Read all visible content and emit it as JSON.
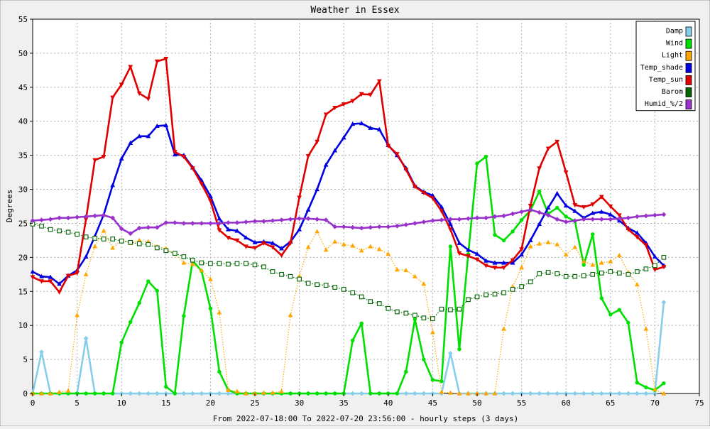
{
  "chart_data": {
    "type": "line",
    "title": "Weather in Essex",
    "xlabel": "From 2022-07-18:00 To 2022-07-20 23:56:00 - hourly steps (3 days)",
    "ylabel": "Degrees",
    "xlim": [
      0,
      75
    ],
    "ylim": [
      0,
      55
    ],
    "xticks": [
      0,
      5,
      10,
      15,
      20,
      25,
      30,
      35,
      40,
      45,
      50,
      55,
      60,
      65,
      70,
      75
    ],
    "yticks": [
      0,
      5,
      10,
      15,
      20,
      25,
      30,
      35,
      40,
      45,
      50,
      55
    ],
    "grid": true,
    "legend_position": "top-right",
    "series": [
      {
        "name": "Damp",
        "color": "#87ceeb",
        "style": "solid",
        "marker": "diamond",
        "values": [
          0,
          6.1,
          0,
          0,
          0,
          0,
          8.1,
          0,
          0,
          0,
          0,
          0,
          0,
          0,
          0,
          0,
          0,
          0,
          0,
          0,
          0,
          0,
          0,
          0,
          0,
          0,
          0,
          0,
          0,
          0,
          0,
          0,
          0,
          0,
          0,
          0,
          0,
          0,
          0,
          0,
          0,
          0,
          0,
          0,
          0,
          0,
          0,
          5.9,
          0,
          0,
          0,
          0,
          0,
          0,
          0,
          0,
          0,
          0,
          0,
          0,
          0,
          0,
          0,
          0,
          0,
          0,
          0,
          0,
          0,
          0,
          0,
          13.4
        ]
      },
      {
        "name": "Wind",
        "color": "#00e000",
        "style": "solid",
        "marker": "circle",
        "values": [
          0,
          0,
          0,
          0,
          0,
          0,
          0,
          0,
          0,
          0,
          7.5,
          10.5,
          13.3,
          16.5,
          15.1,
          1,
          0,
          11.4,
          19.5,
          18,
          12.5,
          3.2,
          0.5,
          0,
          0,
          0,
          0,
          0,
          0,
          0,
          0,
          0,
          0,
          0,
          0,
          0,
          7.8,
          10.3,
          0,
          0,
          0,
          0,
          3.2,
          10.9,
          5,
          2,
          1.8,
          21.6,
          6.5,
          20.5,
          33.8,
          34.8,
          23.3,
          22.5,
          23.8,
          25.5,
          26.9,
          29.7,
          26.4,
          27.3,
          26,
          25.3,
          18.9,
          23.4,
          14,
          11.6,
          12.3,
          10.4,
          1.6,
          0.9,
          0.5,
          1.5
        ]
      },
      {
        "name": "Light",
        "color": "#ffa500",
        "style": "dotted",
        "marker": "triangle",
        "values": [
          0,
          0,
          0,
          0.2,
          0.4,
          11.5,
          17.5,
          21.6,
          23.9,
          21.4,
          22.5,
          22.1,
          22.5,
          22.3,
          21.6,
          21.3,
          20.5,
          19.2,
          19,
          18.1,
          16.8,
          11.9,
          0.5,
          0.3,
          0,
          0,
          0.1,
          0.1,
          0.3,
          11.5,
          17.2,
          21.5,
          23.8,
          21.1,
          22.3,
          21.9,
          21.7,
          21,
          21.6,
          21.2,
          20.5,
          18.2,
          18.1,
          17.2,
          16.1,
          9,
          0.2,
          0.1,
          0,
          0,
          0,
          0,
          0,
          9.5,
          15.7,
          18.5,
          21.6,
          22,
          22.2,
          21.9,
          20.4,
          21.5,
          19.4,
          18.9,
          19.2,
          19.4,
          20.3,
          17.8,
          16,
          9.5,
          0.6,
          0
        ]
      },
      {
        "name": "Temp_shade",
        "color": "#0000e0",
        "style": "solid",
        "marker": "triangle",
        "values": [
          17.9,
          17.2,
          17.1,
          16.1,
          17.3,
          18.1,
          20.1,
          23.1,
          26.3,
          30.6,
          34.5,
          36.8,
          37.8,
          37.8,
          39.3,
          39.4,
          35.1,
          35,
          33.2,
          31.3,
          29,
          25.7,
          24.1,
          23.9,
          22.9,
          22.2,
          22.3,
          22.1,
          21.3,
          22.3,
          24.1,
          27,
          30,
          33.6,
          35.7,
          37.6,
          39.6,
          39.7,
          39,
          38.8,
          36.5,
          35,
          33.1,
          30.5,
          29.6,
          29.1,
          27.4,
          24.9,
          22.1,
          21.1,
          20.5,
          19.5,
          19.2,
          19.2,
          19.2,
          20.4,
          22.5,
          24.9,
          27.3,
          29.4,
          27.6,
          26.8,
          25.8,
          26.5,
          26.7,
          26.3,
          25.4,
          24.3,
          23.6,
          22.1,
          20.1,
          18.8
        ]
      },
      {
        "name": "Temp_sun",
        "color": "#e00000",
        "style": "solid",
        "marker": "triangle-down",
        "values": [
          17.1,
          16.5,
          16.5,
          14.9,
          17.3,
          17.7,
          25.6,
          34.3,
          34.8,
          43.5,
          45.4,
          48,
          44.1,
          43.3,
          48.8,
          49.2,
          35.5,
          34.8,
          33.1,
          30.8,
          28.3,
          24,
          22.9,
          22.5,
          21.6,
          21.4,
          22.1,
          21.5,
          20.3,
          22.1,
          28.8,
          34.9,
          37,
          41,
          42,
          42.5,
          43,
          44,
          43.9,
          45.9,
          36.4,
          35.2,
          32.9,
          30.4,
          29.5,
          28.7,
          26.8,
          24.1,
          20.6,
          20.2,
          19.7,
          18.8,
          18.5,
          18.5,
          19.6,
          21.2,
          27.6,
          33.1,
          36,
          37,
          32.5,
          27.7,
          27.4,
          27.8,
          28.9,
          27.5,
          26.2,
          24.1,
          23,
          21.8,
          18.2,
          18.6
        ]
      },
      {
        "name": "Barom",
        "color": "#006400",
        "style": "dotted",
        "marker": "square",
        "values": [
          24.9,
          24.6,
          24.1,
          23.9,
          23.7,
          23.4,
          23,
          22.8,
          22.7,
          22.7,
          22.4,
          22.2,
          22,
          21.9,
          21.4,
          21,
          20.6,
          20.1,
          19.6,
          19.2,
          19.1,
          19.1,
          19,
          19.1,
          19.1,
          18.9,
          18.6,
          17.9,
          17.5,
          17.2,
          16.8,
          16.2,
          16,
          15.9,
          15.6,
          15.3,
          14.8,
          14.2,
          13.5,
          13.2,
          12.5,
          12,
          11.8,
          11.5,
          11.1,
          11,
          12.4,
          12.3,
          12.4,
          13.8,
          14.2,
          14.5,
          14.6,
          14.8,
          15.3,
          15.7,
          16.4,
          17.6,
          17.8,
          17.6,
          17.2,
          17.2,
          17.3,
          17.5,
          17.7,
          17.9,
          17.7,
          17.5,
          17.9,
          18.3,
          18.8,
          20
        ]
      },
      {
        "name": "Humid_%/2",
        "color": "#9932cc",
        "style": "solid",
        "marker": "diamond",
        "values": [
          25.4,
          25.5,
          25.6,
          25.8,
          25.8,
          25.9,
          26,
          26.1,
          26.2,
          25.8,
          24.2,
          23.5,
          24.3,
          24.4,
          24.4,
          25.1,
          25.1,
          25,
          25,
          25,
          25,
          25,
          25.1,
          25.1,
          25.2,
          25.3,
          25.3,
          25.4,
          25.5,
          25.6,
          25.7,
          25.7,
          25.6,
          25.5,
          24.5,
          24.5,
          24.4,
          24.3,
          24.4,
          24.5,
          24.5,
          24.6,
          24.8,
          25,
          25.2,
          25.4,
          25.5,
          25.6,
          25.6,
          25.7,
          25.8,
          25.8,
          26,
          26.1,
          26.4,
          26.7,
          27,
          26.6,
          26.2,
          25.6,
          25.2,
          25.4,
          25.6,
          25.6,
          25.6,
          25.6,
          25.7,
          25.8,
          26,
          26.1,
          26.2,
          26.3
        ]
      }
    ]
  }
}
